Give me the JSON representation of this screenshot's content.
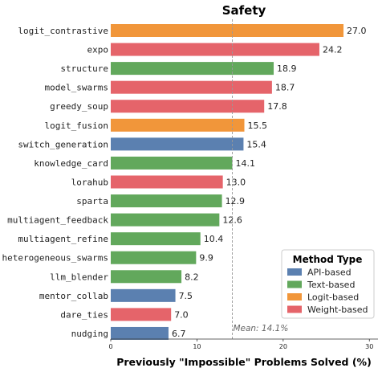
{
  "chart_data": {
    "type": "bar",
    "orientation": "horizontal",
    "title": "Safety",
    "xlabel": "Previously \"Impossible\" Problems Solved (%)",
    "ylabel": "",
    "xlim": [
      0,
      31
    ],
    "xticks": [
      0,
      10,
      20,
      30
    ],
    "grid": false,
    "mean": {
      "value": 14.1,
      "label": "Mean: 14.1%"
    },
    "legend": {
      "title": "Method Type",
      "placement": "bottom-right",
      "entries": [
        {
          "name": "API-based",
          "color": "#5b80b0"
        },
        {
          "name": "Text-based",
          "color": "#62a85c"
        },
        {
          "name": "Logit-based",
          "color": "#f1963a"
        },
        {
          "name": "Weight-based",
          "color": "#e5646a"
        }
      ]
    },
    "bars": [
      {
        "category": "logit_contrastive",
        "value": 27.0,
        "label": "27.0",
        "type": "Logit-based"
      },
      {
        "category": "expo",
        "value": 24.2,
        "label": "24.2",
        "type": "Weight-based"
      },
      {
        "category": "structure",
        "value": 18.9,
        "label": "18.9",
        "type": "Text-based"
      },
      {
        "category": "model_swarms",
        "value": 18.7,
        "label": "18.7",
        "type": "Weight-based"
      },
      {
        "category": "greedy_soup",
        "value": 17.8,
        "label": "17.8",
        "type": "Weight-based"
      },
      {
        "category": "logit_fusion",
        "value": 15.5,
        "label": "15.5",
        "type": "Logit-based"
      },
      {
        "category": "switch_generation",
        "value": 15.4,
        "label": "15.4",
        "type": "API-based"
      },
      {
        "category": "knowledge_card",
        "value": 14.1,
        "label": "14.1",
        "type": "Text-based"
      },
      {
        "category": "lorahub",
        "value": 13.0,
        "label": "13.0",
        "type": "Weight-based"
      },
      {
        "category": "sparta",
        "value": 12.9,
        "label": "12.9",
        "type": "Text-based"
      },
      {
        "category": "multiagent_feedback",
        "value": 12.6,
        "label": "12.6",
        "type": "Text-based"
      },
      {
        "category": "multiagent_refine",
        "value": 10.4,
        "label": "10.4",
        "type": "Text-based"
      },
      {
        "category": "heterogeneous_swarms",
        "value": 9.9,
        "label": "9.9",
        "type": "Text-based"
      },
      {
        "category": "llm_blender",
        "value": 8.2,
        "label": "8.2",
        "type": "Text-based"
      },
      {
        "category": "mentor_collab",
        "value": 7.5,
        "label": "7.5",
        "type": "API-based"
      },
      {
        "category": "dare_ties",
        "value": 7.0,
        "label": "7.0",
        "type": "Weight-based"
      },
      {
        "category": "nudging",
        "value": 6.7,
        "label": "6.7",
        "type": "API-based"
      }
    ]
  }
}
